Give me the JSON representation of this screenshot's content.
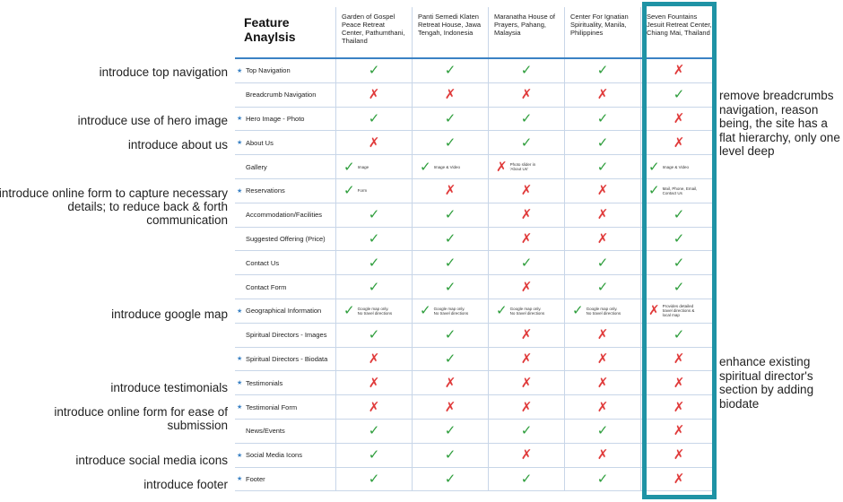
{
  "header": {
    "title": "Feature Anaylsis",
    "sites": [
      "Garden of Gospel Peace Retreat Center, Pathumthani, Thailand",
      "Panti Semedi Klaten Retreat House, Jawa Tengah, Indonesia",
      "Maranatha House of Prayers, Pahang, Malaysia",
      "Center For Ignatian Spirituality, Manila, Philippines",
      "Seven Fountains Jesuit Retreat Center, Chiang Mai, Thailand"
    ]
  },
  "rows": [
    {
      "feature": "Top Navigation",
      "star": "★",
      "cells": [
        {
          "m": "✓"
        },
        {
          "m": "✓"
        },
        {
          "m": "✓"
        },
        {
          "m": "✓"
        },
        {
          "m": "✗"
        }
      ]
    },
    {
      "feature": "Breadcrumb Navigation",
      "star": "",
      "cells": [
        {
          "m": "✗"
        },
        {
          "m": "✗"
        },
        {
          "m": "✗"
        },
        {
          "m": "✗"
        },
        {
          "m": "✓"
        }
      ]
    },
    {
      "feature": "Hero Image - Photo",
      "star": "★",
      "cells": [
        {
          "m": "✓"
        },
        {
          "m": "✓"
        },
        {
          "m": "✓"
        },
        {
          "m": "✓"
        },
        {
          "m": "✗"
        }
      ]
    },
    {
      "feature": "About Us",
      "star": "★",
      "cells": [
        {
          "m": "✗"
        },
        {
          "m": "✓"
        },
        {
          "m": "✓"
        },
        {
          "m": "✓"
        },
        {
          "m": "✗"
        }
      ]
    },
    {
      "feature": "Gallery",
      "star": "",
      "cells": [
        {
          "m": "✓",
          "note": "Image"
        },
        {
          "m": "✓",
          "note": "Image & Video"
        },
        {
          "m": "✗",
          "note": "Photo slider in 'About Us'"
        },
        {
          "m": "✓"
        },
        {
          "m": "✓",
          "note": "Image & Video"
        }
      ]
    },
    {
      "feature": "Reservations",
      "star": "★",
      "cells": [
        {
          "m": "✓",
          "note": "Form"
        },
        {
          "m": "✗"
        },
        {
          "m": "✗"
        },
        {
          "m": "✗"
        },
        {
          "m": "✓",
          "note": "Mail, Phone, Email, Contact Us"
        }
      ]
    },
    {
      "feature": "Accommodation/Facilities",
      "star": "",
      "cells": [
        {
          "m": "✓"
        },
        {
          "m": "✓"
        },
        {
          "m": "✗"
        },
        {
          "m": "✗"
        },
        {
          "m": "✓"
        }
      ]
    },
    {
      "feature": "Suggested Offering (Price)",
      "star": "",
      "cells": [
        {
          "m": "✓"
        },
        {
          "m": "✓"
        },
        {
          "m": "✗"
        },
        {
          "m": "✗"
        },
        {
          "m": "✓"
        }
      ]
    },
    {
      "feature": "Contact Us",
      "star": "",
      "cells": [
        {
          "m": "✓"
        },
        {
          "m": "✓"
        },
        {
          "m": "✓"
        },
        {
          "m": "✓"
        },
        {
          "m": "✓"
        }
      ]
    },
    {
      "feature": "Contact Form",
      "star": "",
      "cells": [
        {
          "m": "✓"
        },
        {
          "m": "✓"
        },
        {
          "m": "✗"
        },
        {
          "m": "✓"
        },
        {
          "m": "✓"
        }
      ]
    },
    {
      "feature": "Geographical Information",
      "star": "★",
      "cells": [
        {
          "m": "✓",
          "note": "Google map only. No travel directions"
        },
        {
          "m": "✓",
          "note": "Google map only. No travel directions"
        },
        {
          "m": "✓",
          "note": "Google map only. No travel directions"
        },
        {
          "m": "✓",
          "note": "Google map only. No travel directions"
        },
        {
          "m": "✗",
          "note": "Provides detailed travel directions & local map"
        }
      ]
    },
    {
      "feature": "Spiritual Directors - Images",
      "star": "",
      "cells": [
        {
          "m": "✓"
        },
        {
          "m": "✓"
        },
        {
          "m": "✗"
        },
        {
          "m": "✗"
        },
        {
          "m": "✓"
        }
      ]
    },
    {
      "feature": "Spiritual Directors - Biodata",
      "star": "★",
      "cells": [
        {
          "m": "✗"
        },
        {
          "m": "✓"
        },
        {
          "m": "✗"
        },
        {
          "m": "✗"
        },
        {
          "m": "✗"
        }
      ]
    },
    {
      "feature": "Testimonials",
      "star": "★",
      "cells": [
        {
          "m": "✗"
        },
        {
          "m": "✗"
        },
        {
          "m": "✗"
        },
        {
          "m": "✗"
        },
        {
          "m": "✗"
        }
      ]
    },
    {
      "feature": "Testimonial Form",
      "star": "★",
      "cells": [
        {
          "m": "✗"
        },
        {
          "m": "✗"
        },
        {
          "m": "✗"
        },
        {
          "m": "✗"
        },
        {
          "m": "✗"
        }
      ]
    },
    {
      "feature": "News/Events",
      "star": "",
      "cells": [
        {
          "m": "✓"
        },
        {
          "m": "✓"
        },
        {
          "m": "✓"
        },
        {
          "m": "✓"
        },
        {
          "m": "✗"
        }
      ]
    },
    {
      "feature": "Social Media Icons",
      "star": "★",
      "cells": [
        {
          "m": "✓"
        },
        {
          "m": "✓"
        },
        {
          "m": "✗"
        },
        {
          "m": "✗"
        },
        {
          "m": "✗"
        }
      ]
    },
    {
      "feature": "Footer",
      "star": "★",
      "cells": [
        {
          "m": "✓"
        },
        {
          "m": "✓"
        },
        {
          "m": "✓"
        },
        {
          "m": "✓"
        },
        {
          "m": "✗"
        }
      ]
    }
  ],
  "left_notes": [
    "introduce top navigation",
    "introduce use of hero image",
    "introduce about us",
    "introduce online form to capture necessary details; to reduce back & forth communication",
    "introduce google map",
    "introduce testimonials",
    "introduce online form for ease of submission",
    "introduce social media icons",
    "introduce footer"
  ],
  "right_notes": [
    "remove breadcrumbs navigation, reason being, the site has a flat hierarchy, only one level deep",
    "enhance existing spiritual director's section by adding biodate"
  ],
  "colors": {
    "check": "#2e9e3c",
    "cross": "#e03a3a",
    "highlight": "#1f93a5",
    "header_rule": "#3b82c4"
  }
}
